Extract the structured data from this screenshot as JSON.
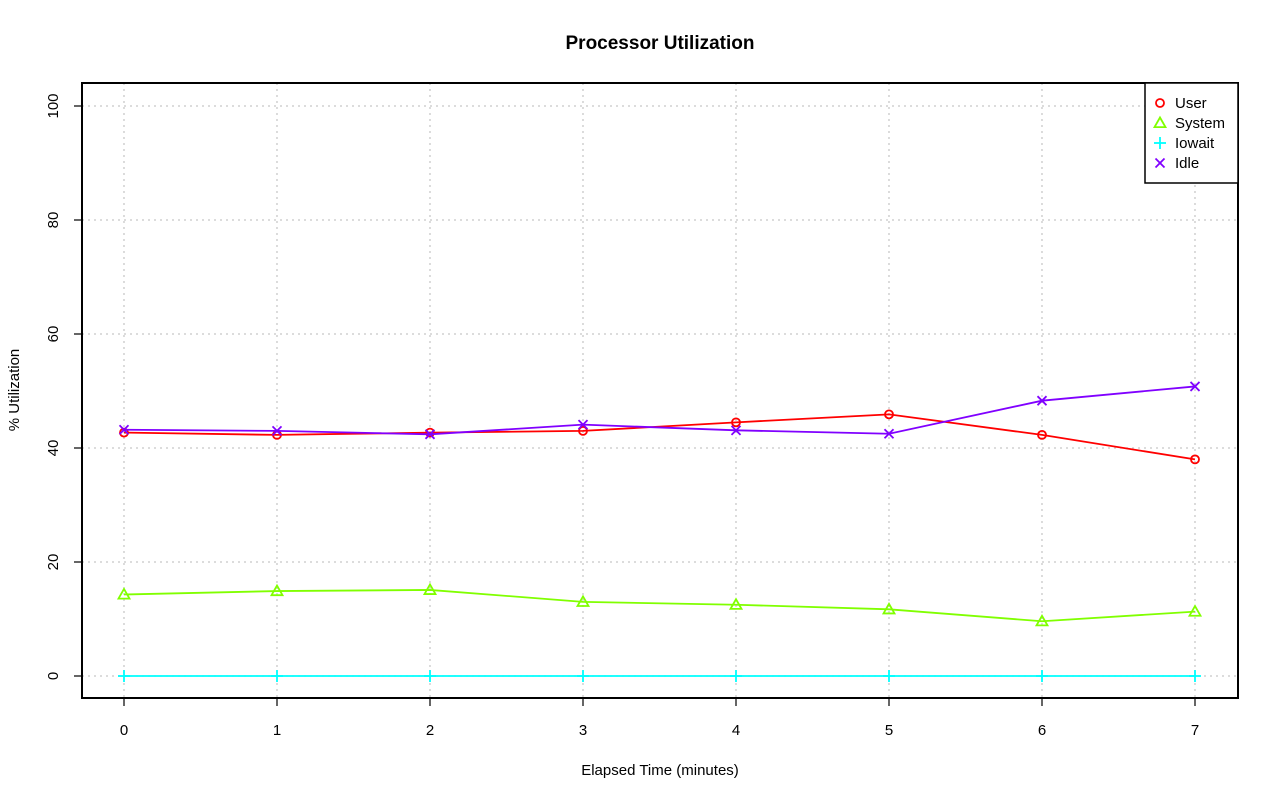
{
  "chart_data": {
    "type": "line",
    "title": "Processor Utilization",
    "xlabel": "Elapsed Time (minutes)",
    "ylabel": "% Utilization",
    "x": [
      0,
      1,
      2,
      3,
      4,
      5,
      6,
      7
    ],
    "xlim": [
      0,
      7
    ],
    "ylim": [
      0,
      100
    ],
    "x_ticks": [
      0,
      1,
      2,
      3,
      4,
      5,
      6,
      7
    ],
    "y_ticks": [
      0,
      20,
      40,
      60,
      80,
      100
    ],
    "grid": true,
    "legend_position": "top-right",
    "series": [
      {
        "name": "User",
        "color": "#ff0000",
        "marker": "circle",
        "values": [
          42.7,
          42.3,
          42.7,
          43.0,
          44.5,
          45.9,
          42.3,
          38.0
        ]
      },
      {
        "name": "System",
        "color": "#80ff00",
        "marker": "triangle",
        "values": [
          14.3,
          14.9,
          15.1,
          13.0,
          12.5,
          11.7,
          9.6,
          11.3
        ]
      },
      {
        "name": "Iowait",
        "color": "#00ffff",
        "marker": "plus",
        "values": [
          0,
          0,
          0,
          0,
          0,
          0,
          0,
          0
        ]
      },
      {
        "name": "Idle",
        "color": "#8000ff",
        "marker": "cross",
        "values": [
          43.2,
          43.0,
          42.4,
          44.1,
          43.1,
          42.5,
          48.3,
          50.8
        ]
      }
    ]
  }
}
